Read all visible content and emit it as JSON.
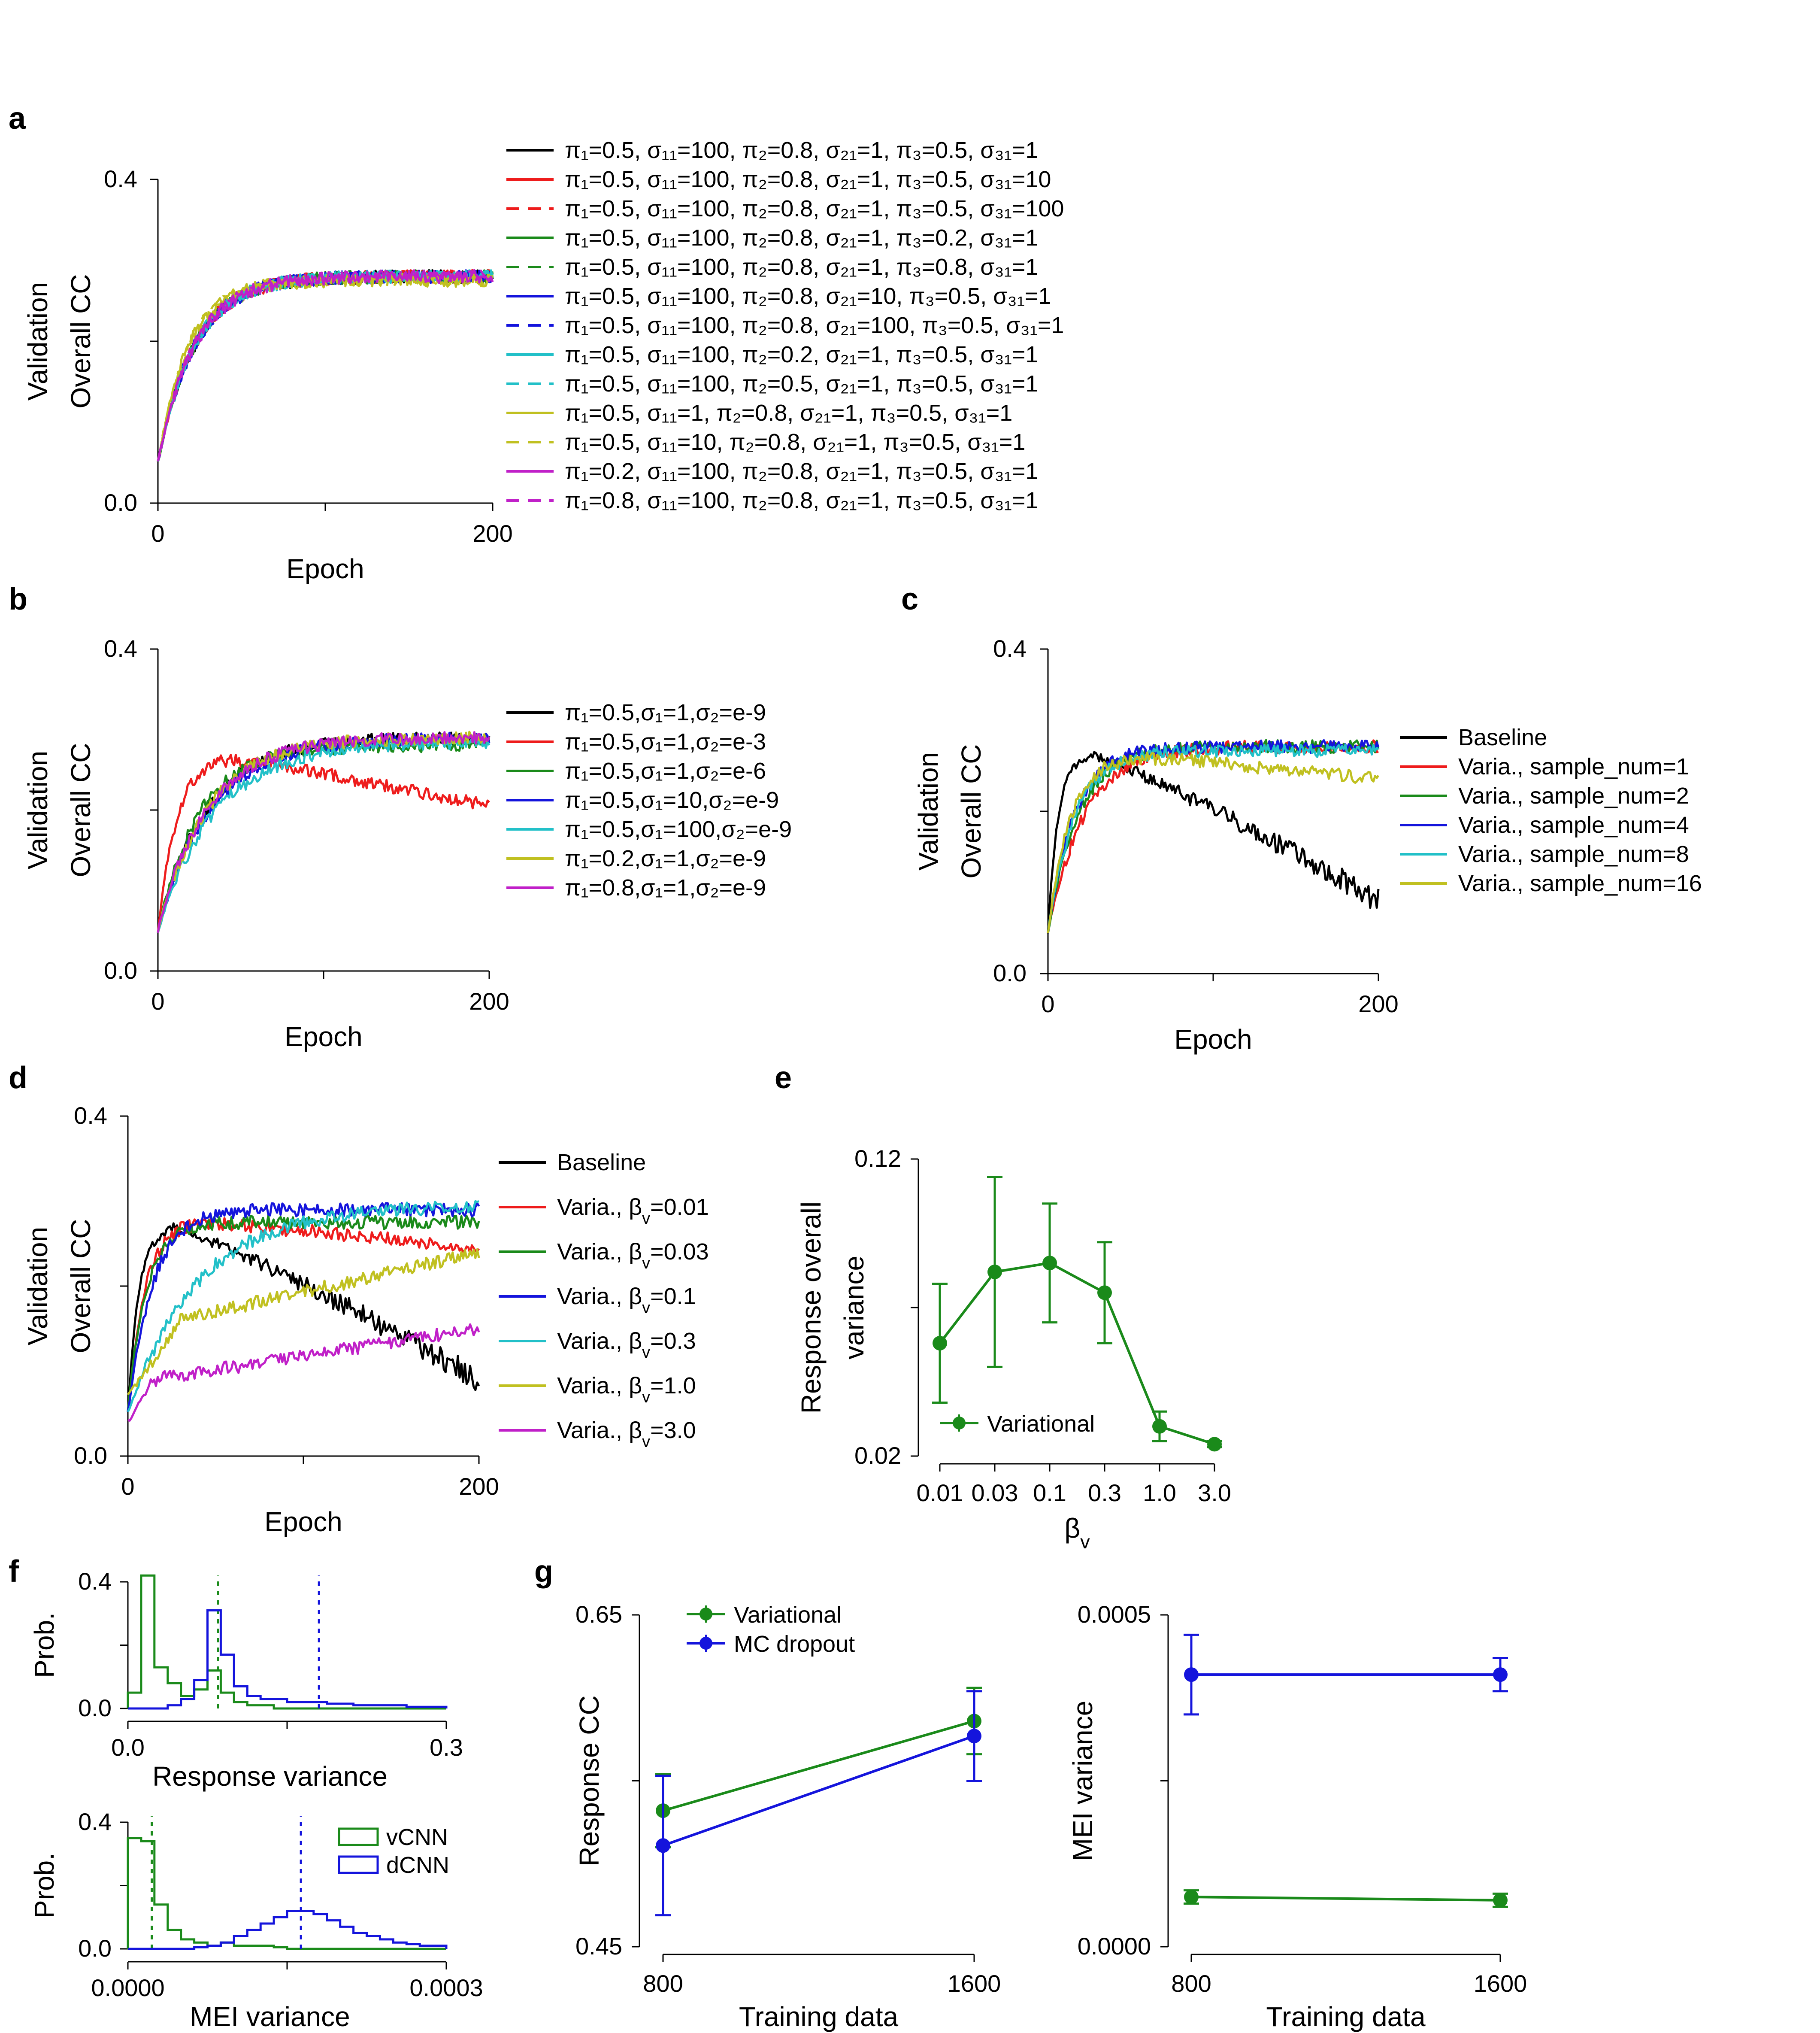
{
  "colors": {
    "black": "#000000",
    "red": "#ee1c1c",
    "green": "#1a8a1a",
    "blue": "#1414dc",
    "cyan": "#22c0c8",
    "olive": "#c0c020",
    "magenta": "#c020c8"
  },
  "chart_data": [
    {
      "id": "a",
      "letter": "a",
      "type": "line",
      "xlabel": "Epoch",
      "ylabel": [
        "Validation",
        "Overall CC"
      ],
      "xlim": [
        0,
        200
      ],
      "ylim": [
        0,
        0.4
      ],
      "xticklabels": [
        "0",
        "200"
      ],
      "yticklabels": [
        "0.0",
        "0.4"
      ],
      "series": [
        {
          "name": "π₁=0.5, σ₁₁=100, π₂=0.8, σ₂₁=1, π₃=0.5, σ₃₁=1",
          "color": "black",
          "dash": false,
          "shape": "rise",
          "final": 0.28,
          "rate": 22,
          "start": 0.05
        },
        {
          "name": "π₁=0.5, σ₁₁=100, π₂=0.8, σ₂₁=1, π₃=0.5, σ₃₁=10",
          "color": "red",
          "dash": false,
          "shape": "rise",
          "final": 0.28,
          "rate": 22,
          "start": 0.05
        },
        {
          "name": "π₁=0.5, σ₁₁=100, π₂=0.8, σ₂₁=1, π₃=0.5, σ₃₁=100",
          "color": "red",
          "dash": true,
          "shape": "rise",
          "final": 0.28,
          "rate": 22,
          "start": 0.05
        },
        {
          "name": "π₁=0.5, σ₁₁=100, π₂=0.8, σ₂₁=1, π₃=0.2, σ₃₁=1",
          "color": "green",
          "dash": false,
          "shape": "rise",
          "final": 0.28,
          "rate": 22,
          "start": 0.05
        },
        {
          "name": "π₁=0.5, σ₁₁=100, π₂=0.8, σ₂₁=1, π₃=0.8, σ₃₁=1",
          "color": "green",
          "dash": true,
          "shape": "rise",
          "final": 0.28,
          "rate": 22,
          "start": 0.05
        },
        {
          "name": "π₁=0.5, σ₁₁=100, π₂=0.8, σ₂₁=10, π₃=0.5, σ₃₁=1",
          "color": "blue",
          "dash": false,
          "shape": "rise",
          "final": 0.28,
          "rate": 22,
          "start": 0.05
        },
        {
          "name": "π₁=0.5, σ₁₁=100, π₂=0.8, σ₂₁=100, π₃=0.5, σ₃₁=1",
          "color": "blue",
          "dash": true,
          "shape": "rise",
          "final": 0.28,
          "rate": 22,
          "start": 0.05
        },
        {
          "name": "π₁=0.5, σ₁₁=100, π₂=0.2, σ₂₁=1, π₃=0.5, σ₃₁=1",
          "color": "cyan",
          "dash": false,
          "shape": "rise",
          "final": 0.28,
          "rate": 22,
          "start": 0.05
        },
        {
          "name": "π₁=0.5, σ₁₁=100, π₂=0.5, σ₂₁=1, π₃=0.5, σ₃₁=1",
          "color": "cyan",
          "dash": true,
          "shape": "rise",
          "final": 0.28,
          "rate": 22,
          "start": 0.05
        },
        {
          "name": "π₁=0.5, σ₁₁=1, π₂=0.8, σ₂₁=1, π₃=0.5, σ₃₁=1",
          "color": "olive",
          "dash": false,
          "shape": "rise",
          "final": 0.275,
          "rate": 18,
          "start": 0.05
        },
        {
          "name": "π₁=0.5, σ₁₁=10, π₂=0.8, σ₂₁=1, π₃=0.5, σ₃₁=1",
          "color": "olive",
          "dash": true,
          "shape": "rise",
          "final": 0.275,
          "rate": 18,
          "start": 0.05
        },
        {
          "name": "π₁=0.2, σ₁₁=100, π₂=0.8, σ₂₁=1, π₃=0.5, σ₃₁=1",
          "color": "magenta",
          "dash": false,
          "shape": "rise",
          "final": 0.28,
          "rate": 22,
          "start": 0.05
        },
        {
          "name": "π₁=0.8, σ₁₁=100, π₂=0.8, σ₂₁=1, π₃=0.5, σ₃₁=1",
          "color": "magenta",
          "dash": true,
          "shape": "rise",
          "final": 0.28,
          "rate": 22,
          "start": 0.05
        }
      ]
    },
    {
      "id": "b",
      "letter": "b",
      "type": "line",
      "xlabel": "Epoch",
      "ylabel": [
        "Validation",
        "Overall CC"
      ],
      "xlim": [
        0,
        200
      ],
      "ylim": [
        0,
        0.4
      ],
      "xticklabels": [
        "0",
        "200"
      ],
      "yticklabels": [
        "0.0",
        "0.4"
      ],
      "series": [
        {
          "name": "π₁=0.5,σ₁=1,σ₂=e-9",
          "color": "black",
          "dash": false,
          "shape": "rise",
          "final": 0.29,
          "rate": 30,
          "start": 0.05
        },
        {
          "name": "π₁=0.5,σ₁=1,σ₂=e-3",
          "color": "red",
          "dash": false,
          "shape": "rise_decay",
          "final": 0.285,
          "rate": 12,
          "start": 0.05,
          "decay": 0.0004
        },
        {
          "name": "π₁=0.5,σ₁=1,σ₂=e-6",
          "color": "green",
          "dash": false,
          "shape": "rise",
          "final": 0.28,
          "rate": 25,
          "start": 0.05
        },
        {
          "name": "π₁=0.5,σ₁=10,σ₂=e-9",
          "color": "blue",
          "dash": false,
          "shape": "rise",
          "final": 0.29,
          "rate": 32,
          "start": 0.05
        },
        {
          "name": "π₁=0.5,σ₁=100,σ₂=e-9",
          "color": "cyan",
          "dash": false,
          "shape": "rise",
          "final": 0.285,
          "rate": 35,
          "start": 0.05
        },
        {
          "name": "π₁=0.2,σ₁=1,σ₂=e-9",
          "color": "olive",
          "dash": false,
          "shape": "rise",
          "final": 0.29,
          "rate": 30,
          "start": 0.05
        },
        {
          "name": "π₁=0.8,σ₁=1,σ₂=e-9",
          "color": "magenta",
          "dash": false,
          "shape": "rise",
          "final": 0.29,
          "rate": 30,
          "start": 0.05
        }
      ]
    },
    {
      "id": "c",
      "letter": "c",
      "type": "line",
      "xlabel": "Epoch",
      "ylabel": [
        "Validation",
        "Overall CC"
      ],
      "xlim": [
        0,
        200
      ],
      "ylim": [
        0,
        0.4
      ],
      "xticklabels": [
        "0",
        "200"
      ],
      "yticklabels": [
        "0.0",
        "0.4"
      ],
      "series": [
        {
          "name": "Baseline",
          "color": "black",
          "dash": false,
          "shape": "baseline",
          "final": 0.27,
          "rate": 6,
          "start": 0.05,
          "peak_epoch": 25,
          "end": 0.09
        },
        {
          "name": "Varia., sample_num=1",
          "color": "red",
          "dash": false,
          "shape": "rise",
          "final": 0.28,
          "rate": 22,
          "start": 0.05
        },
        {
          "name": "Varia., sample_num=2",
          "color": "green",
          "dash": false,
          "shape": "rise",
          "final": 0.28,
          "rate": 18,
          "start": 0.05
        },
        {
          "name": "Varia., sample_num=4",
          "color": "blue",
          "dash": false,
          "shape": "rise",
          "final": 0.28,
          "rate": 16,
          "start": 0.05
        },
        {
          "name": "Varia., sample_num=8",
          "color": "cyan",
          "dash": false,
          "shape": "rise",
          "final": 0.275,
          "rate": 16,
          "start": 0.05
        },
        {
          "name": "Varia., sample_num=16",
          "color": "olive",
          "dash": false,
          "shape": "rise_decay",
          "final": 0.28,
          "rate": 14,
          "start": 0.05,
          "decay": 0.0002
        }
      ]
    },
    {
      "id": "d",
      "letter": "d",
      "type": "line",
      "xlabel": "Epoch",
      "ylabel": [
        "Validation",
        "Overall CC"
      ],
      "xlim": [
        0,
        200
      ],
      "ylim": [
        0,
        0.4
      ],
      "xticklabels": [
        "0",
        "200"
      ],
      "yticklabels": [
        "0.0",
        "0.4"
      ],
      "series": [
        {
          "name": "Baseline",
          "color": "black",
          "dash": false,
          "shape": "baseline",
          "final": 0.27,
          "rate": 6,
          "start": 0.05,
          "peak_epoch": 25,
          "end": 0.09
        },
        {
          "name": "Varia., β",
          "sub": "v",
          "suffix": "=0.01",
          "color": "red",
          "dash": false,
          "shape": "rise_decay",
          "final": 0.285,
          "rate": 10,
          "start": 0.05,
          "decay": 0.0002
        },
        {
          "name": "Varia., β",
          "sub": "v",
          "suffix": "=0.03",
          "color": "green",
          "dash": false,
          "shape": "rise",
          "final": 0.275,
          "rate": 10,
          "start": 0.05
        },
        {
          "name": "Varia., β",
          "sub": "v",
          "suffix": "=0.1",
          "color": "blue",
          "dash": false,
          "shape": "rise",
          "final": 0.29,
          "rate": 14,
          "start": 0.05
        },
        {
          "name": "Varia., β",
          "sub": "v",
          "suffix": "=0.3",
          "color": "cyan",
          "dash": false,
          "shape": "rise",
          "final": 0.295,
          "rate": 40,
          "start": 0.05
        },
        {
          "name": "Varia., β",
          "sub": "v",
          "suffix": "=1.0",
          "color": "olive",
          "dash": false,
          "shape": "linrise",
          "final": 0.24,
          "start": 0.07,
          "knee": 0.16,
          "knee_epoch": 30
        },
        {
          "name": "Varia., β",
          "sub": "v",
          "suffix": "=3.0",
          "color": "magenta",
          "dash": false,
          "shape": "linrise",
          "final": 0.15,
          "start": 0.04,
          "knee": 0.09,
          "knee_epoch": 15
        }
      ]
    },
    {
      "id": "e",
      "letter": "e",
      "type": "line_errorbar",
      "xlabel": "β",
      "xlabel_sub": "v",
      "ylabel": [
        "Response overall",
        "variance"
      ],
      "ylim": [
        0.02,
        0.12
      ],
      "yticklabels": [
        "0.02",
        "0.12"
      ],
      "categories": [
        "0.01",
        "0.03",
        "0.1",
        "0.3",
        "1.0",
        "3.0"
      ],
      "series": [
        {
          "name": "Variational",
          "color": "green",
          "values": [
            0.058,
            0.082,
            0.085,
            0.075,
            0.03,
            0.024
          ],
          "errors": [
            0.02,
            0.032,
            0.02,
            0.017,
            0.005,
            0.001
          ]
        }
      ]
    },
    {
      "id": "f1",
      "letter": "f",
      "type": "histogram",
      "xlabel": "Response variance",
      "ylabel": "Prob.",
      "xlim": [
        0,
        0.3
      ],
      "ylim": [
        0,
        0.4
      ],
      "xticklabels": [
        "0.0",
        "0.3"
      ],
      "yticklabels": [
        "0.0",
        "0.4"
      ],
      "bin_edges": [
        0,
        0.0125,
        0.025,
        0.0375,
        0.05,
        0.0625,
        0.075,
        0.0875,
        0.1,
        0.1125,
        0.125,
        0.1375,
        0.15,
        0.1625,
        0.175,
        0.1875,
        0.2,
        0.2125,
        0.225,
        0.2375,
        0.25,
        0.2625,
        0.275,
        0.2875,
        0.3
      ],
      "series": [
        {
          "name": "vCNN",
          "color": "green",
          "mean": 0.085,
          "counts": [
            0.05,
            0.42,
            0.13,
            0.08,
            0.04,
            0.06,
            0.12,
            0.05,
            0.02,
            0.01,
            0.01,
            0.0,
            0.0,
            0.0,
            0.0,
            0.0,
            0.0,
            0.0,
            0.0,
            0.0,
            0.0,
            0.0,
            0.0,
            0.0
          ]
        },
        {
          "name": "dCNN",
          "color": "blue",
          "mean": 0.18,
          "counts": [
            0.0,
            0.0,
            0.0,
            0.01,
            0.03,
            0.09,
            0.31,
            0.17,
            0.07,
            0.04,
            0.03,
            0.03,
            0.02,
            0.02,
            0.02,
            0.015,
            0.015,
            0.01,
            0.01,
            0.01,
            0.01,
            0.005,
            0.005,
            0.005
          ]
        }
      ]
    },
    {
      "id": "f2",
      "letter": "",
      "type": "histogram",
      "xlabel": "MEI variance",
      "ylabel": "Prob.",
      "xlim": [
        0,
        0.0003
      ],
      "ylim": [
        0,
        0.4
      ],
      "xticklabels": [
        "0.0000",
        "0.0003"
      ],
      "yticklabels": [
        "0.0",
        "0.4"
      ],
      "bin_edges": [
        0,
        1.25e-05,
        2.5e-05,
        3.75e-05,
        5e-05,
        6.25e-05,
        7.5e-05,
        8.75e-05,
        0.0001,
        0.0001125,
        0.000125,
        0.0001375,
        0.00015,
        0.0001625,
        0.000175,
        0.0001875,
        0.0002,
        0.0002125,
        0.000225,
        0.0002375,
        0.00025,
        0.0002625,
        0.000275,
        0.0002875,
        0.0003
      ],
      "series": [
        {
          "name": "vCNN",
          "color": "green",
          "mean": 2.25e-05,
          "counts": [
            0.35,
            0.34,
            0.14,
            0.06,
            0.03,
            0.02,
            0.01,
            0.02,
            0.01,
            0.01,
            0.01,
            0.005,
            0.0,
            0.0,
            0.0,
            0.0,
            0.0,
            0.0,
            0.0,
            0.0,
            0.0,
            0.0,
            0.0,
            0.0
          ]
        },
        {
          "name": "dCNN",
          "color": "blue",
          "mean": 0.000163,
          "counts": [
            0.0,
            0.0,
            0.0,
            0.0,
            0.0,
            0.005,
            0.01,
            0.02,
            0.04,
            0.06,
            0.08,
            0.1,
            0.12,
            0.12,
            0.11,
            0.09,
            0.07,
            0.05,
            0.04,
            0.03,
            0.02,
            0.015,
            0.01,
            0.01
          ]
        }
      ]
    },
    {
      "id": "g1",
      "letter": "g",
      "type": "line_errorbar",
      "xlabel": "Training data",
      "ylabel": "Response CC",
      "ylim": [
        0.45,
        0.65
      ],
      "yticklabels": [
        "0.45",
        "0.65"
      ],
      "categories": [
        "800",
        "1600"
      ],
      "series": [
        {
          "name": "Variational",
          "color": "green",
          "values": [
            0.532,
            0.586
          ],
          "errors": [
            0.022,
            0.02
          ]
        },
        {
          "name": "MC dropout",
          "color": "blue",
          "values": [
            0.511,
            0.577
          ],
          "errors": [
            0.042,
            0.027
          ]
        }
      ]
    },
    {
      "id": "g2",
      "letter": "",
      "type": "line_errorbar",
      "xlabel": "Training data",
      "ylabel": "MEI variance",
      "ylim": [
        0,
        0.0005
      ],
      "yticklabels": [
        "0.0000",
        "0.0005"
      ],
      "categories": [
        "800",
        "1600"
      ],
      "series": [
        {
          "name": "Variational",
          "color": "green",
          "values": [
            7.5e-05,
            7e-05
          ],
          "errors": [
            1e-05,
            1e-05
          ]
        },
        {
          "name": "MC dropout",
          "color": "blue",
          "values": [
            0.00041,
            0.00041
          ],
          "errors": [
            6e-05,
            2.5e-05
          ]
        }
      ]
    }
  ]
}
